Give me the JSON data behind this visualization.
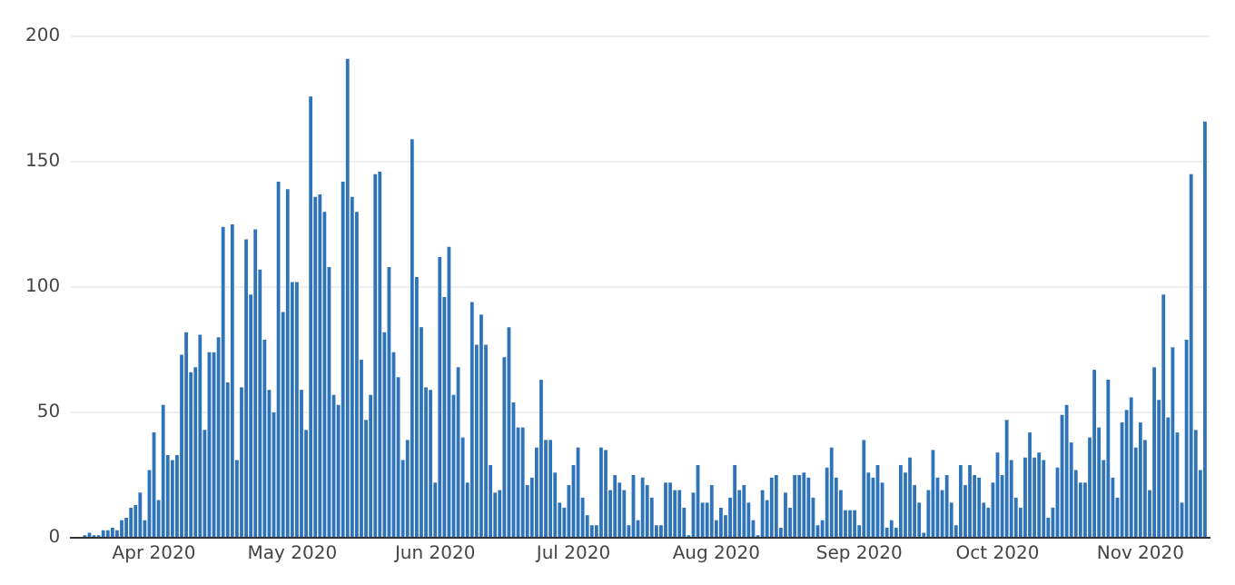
{
  "chart_data": {
    "type": "bar",
    "x": [
      "2020-03-17",
      "2020-03-18",
      "2020-03-19",
      "2020-03-20",
      "2020-03-21",
      "2020-03-22",
      "2020-03-23",
      "2020-03-24",
      "2020-03-25",
      "2020-03-26",
      "2020-03-27",
      "2020-03-28",
      "2020-03-29",
      "2020-03-30",
      "2020-03-31",
      "2020-04-01",
      "2020-04-02",
      "2020-04-03",
      "2020-04-04",
      "2020-04-05",
      "2020-04-06",
      "2020-04-07",
      "2020-04-08",
      "2020-04-09",
      "2020-04-10",
      "2020-04-11",
      "2020-04-12",
      "2020-04-13",
      "2020-04-14",
      "2020-04-15",
      "2020-04-16",
      "2020-04-17",
      "2020-04-18",
      "2020-04-19",
      "2020-04-20",
      "2020-04-21",
      "2020-04-22",
      "2020-04-23",
      "2020-04-24",
      "2020-04-25",
      "2020-04-26",
      "2020-04-27",
      "2020-04-28",
      "2020-04-29",
      "2020-04-30",
      "2020-05-01",
      "2020-05-02",
      "2020-05-03",
      "2020-05-04",
      "2020-05-05",
      "2020-05-06",
      "2020-05-07",
      "2020-05-08",
      "2020-05-09",
      "2020-05-10",
      "2020-05-11",
      "2020-05-12",
      "2020-05-13",
      "2020-05-14",
      "2020-05-15",
      "2020-05-16",
      "2020-05-17",
      "2020-05-18",
      "2020-05-19",
      "2020-05-20",
      "2020-05-21",
      "2020-05-22",
      "2020-05-23",
      "2020-05-24",
      "2020-05-25",
      "2020-05-26",
      "2020-05-27",
      "2020-05-28",
      "2020-05-29",
      "2020-05-30",
      "2020-05-31",
      "2020-06-01",
      "2020-06-02",
      "2020-06-03",
      "2020-06-04",
      "2020-06-05",
      "2020-06-06",
      "2020-06-07",
      "2020-06-08",
      "2020-06-09",
      "2020-06-10",
      "2020-06-11",
      "2020-06-12",
      "2020-06-13",
      "2020-06-14",
      "2020-06-15",
      "2020-06-16",
      "2020-06-17",
      "2020-06-18",
      "2020-06-19",
      "2020-06-20",
      "2020-06-21",
      "2020-06-22",
      "2020-06-23",
      "2020-06-24",
      "2020-06-25",
      "2020-06-26",
      "2020-06-27",
      "2020-06-28",
      "2020-06-29",
      "2020-06-30",
      "2020-07-01",
      "2020-07-02",
      "2020-07-03",
      "2020-07-04",
      "2020-07-05",
      "2020-07-06",
      "2020-07-07",
      "2020-07-08",
      "2020-07-09",
      "2020-07-10",
      "2020-07-11",
      "2020-07-12",
      "2020-07-13",
      "2020-07-14",
      "2020-07-15",
      "2020-07-16",
      "2020-07-17",
      "2020-07-18",
      "2020-07-19",
      "2020-07-20",
      "2020-07-21",
      "2020-07-22",
      "2020-07-23",
      "2020-07-24",
      "2020-07-25",
      "2020-07-26",
      "2020-07-27",
      "2020-07-28",
      "2020-07-29",
      "2020-07-30",
      "2020-07-31",
      "2020-08-01",
      "2020-08-02",
      "2020-08-03",
      "2020-08-04",
      "2020-08-05",
      "2020-08-06",
      "2020-08-07",
      "2020-08-08",
      "2020-08-09",
      "2020-08-10",
      "2020-08-11",
      "2020-08-12",
      "2020-08-13",
      "2020-08-14",
      "2020-08-15",
      "2020-08-16",
      "2020-08-17",
      "2020-08-18",
      "2020-08-19",
      "2020-08-20",
      "2020-08-21",
      "2020-08-22",
      "2020-08-23",
      "2020-08-24",
      "2020-08-25",
      "2020-08-26",
      "2020-08-27",
      "2020-08-28",
      "2020-08-29",
      "2020-08-30",
      "2020-08-31",
      "2020-09-01",
      "2020-09-02",
      "2020-09-03",
      "2020-09-04",
      "2020-09-05",
      "2020-09-06",
      "2020-09-07",
      "2020-09-08",
      "2020-09-09",
      "2020-09-10",
      "2020-09-11",
      "2020-09-12",
      "2020-09-13",
      "2020-09-14",
      "2020-09-15",
      "2020-09-16",
      "2020-09-17",
      "2020-09-18",
      "2020-09-19",
      "2020-09-20",
      "2020-09-21",
      "2020-09-22",
      "2020-09-23",
      "2020-09-24",
      "2020-09-25",
      "2020-09-26",
      "2020-09-27",
      "2020-09-28",
      "2020-09-29",
      "2020-09-30",
      "2020-10-01",
      "2020-10-02",
      "2020-10-03",
      "2020-10-04",
      "2020-10-05",
      "2020-10-06",
      "2020-10-07",
      "2020-10-08",
      "2020-10-09",
      "2020-10-10",
      "2020-10-11",
      "2020-10-12",
      "2020-10-13",
      "2020-10-14",
      "2020-10-15",
      "2020-10-16",
      "2020-10-17",
      "2020-10-18",
      "2020-10-19",
      "2020-10-20",
      "2020-10-21",
      "2020-10-22",
      "2020-10-23",
      "2020-10-24",
      "2020-10-25",
      "2020-10-26",
      "2020-10-27",
      "2020-10-28",
      "2020-10-29",
      "2020-10-30",
      "2020-10-31",
      "2020-11-01",
      "2020-11-02",
      "2020-11-03",
      "2020-11-04",
      "2020-11-05",
      "2020-11-06",
      "2020-11-07",
      "2020-11-08",
      "2020-11-09",
      "2020-11-10",
      "2020-11-11",
      "2020-11-12",
      "2020-11-13",
      "2020-11-14",
      "2020-11-15"
    ],
    "values": [
      1,
      2,
      1,
      1,
      3,
      3,
      4,
      3,
      7,
      8,
      12,
      13,
      18,
      7,
      27,
      42,
      15,
      53,
      33,
      31,
      33,
      73,
      82,
      66,
      68,
      81,
      43,
      74,
      74,
      80,
      124,
      62,
      125,
      31,
      60,
      119,
      97,
      123,
      107,
      79,
      59,
      50,
      142,
      90,
      139,
      102,
      102,
      59,
      43,
      176,
      136,
      137,
      130,
      108,
      57,
      53,
      142,
      191,
      136,
      130,
      71,
      47,
      57,
      145,
      146,
      82,
      108,
      74,
      64,
      31,
      39,
      159,
      104,
      84,
      60,
      59,
      22,
      112,
      96,
      116,
      57,
      68,
      40,
      22,
      94,
      77,
      89,
      77,
      29,
      18,
      19,
      72,
      84,
      54,
      44,
      44,
      21,
      24,
      36,
      63,
      39,
      39,
      26,
      14,
      12,
      21,
      29,
      36,
      16,
      9,
      5,
      5,
      36,
      35,
      19,
      25,
      22,
      19,
      5,
      25,
      7,
      24,
      21,
      16,
      5,
      5,
      22,
      22,
      19,
      19,
      12,
      1,
      18,
      29,
      14,
      14,
      21,
      7,
      12,
      9,
      16,
      29,
      19,
      21,
      14,
      7,
      1,
      19,
      15,
      24,
      25,
      4,
      18,
      12,
      25,
      25,
      26,
      24,
      16,
      5,
      7,
      28,
      36,
      24,
      19,
      11,
      11,
      11,
      5,
      39,
      26,
      24,
      29,
      22,
      4,
      7,
      4,
      29,
      26,
      32,
      21,
      14,
      2,
      19,
      35,
      24,
      19,
      25,
      14,
      5,
      29,
      21,
      29,
      25,
      24,
      14,
      12,
      22,
      34,
      25,
      47,
      31,
      16,
      12,
      32,
      42,
      32,
      34,
      31,
      8,
      12,
      28,
      49,
      53,
      38,
      27,
      22,
      22,
      40,
      67,
      44,
      31,
      63,
      24,
      16,
      46,
      51,
      56,
      36,
      46,
      39,
      19,
      68,
      55,
      97,
      48,
      76,
      42,
      14,
      79,
      145,
      43,
      27,
      166
    ],
    "color": "#2f74b9",
    "xlim": [
      "2020-03-14",
      "2020-11-16"
    ],
    "xticks": [
      {
        "value": "2020-04-01",
        "label": "Apr 2020"
      },
      {
        "value": "2020-05-01",
        "label": "May 2020"
      },
      {
        "value": "2020-06-01",
        "label": "Jun 2020"
      },
      {
        "value": "2020-07-01",
        "label": "Jul 2020"
      },
      {
        "value": "2020-08-01",
        "label": "Aug 2020"
      },
      {
        "value": "2020-09-01",
        "label": "Sep 2020"
      },
      {
        "value": "2020-10-01",
        "label": "Oct 2020"
      },
      {
        "value": "2020-11-01",
        "label": "Nov 2020"
      }
    ],
    "ylim": [
      0,
      200
    ],
    "yticks": [
      0,
      50,
      100,
      150,
      200
    ],
    "grid": "y"
  }
}
